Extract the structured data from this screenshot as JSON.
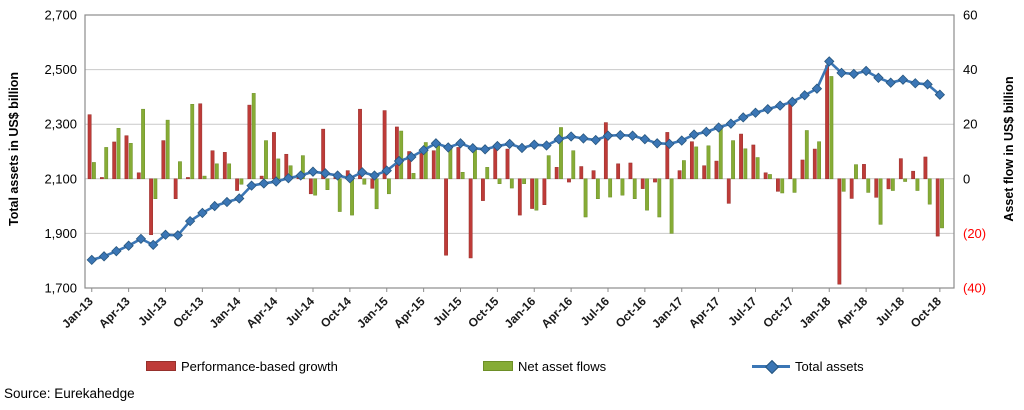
{
  "source": "Source: Eurekahedge",
  "left_axis": {
    "title": "Total assets in US$ billion",
    "min": 1700,
    "max": 2700,
    "ticks": [
      "2,700",
      "2,500",
      "2,300",
      "2,100",
      "1,900",
      "1,700"
    ]
  },
  "right_axis": {
    "title": "Asset flow in US$ billion",
    "min": -40,
    "max": 60,
    "ticks": [
      "60",
      "40",
      "20",
      "0",
      "(20)",
      "(40)"
    ],
    "negative_tick_color": "#ff0000"
  },
  "legend": {
    "performance_label": "Performance-based growth",
    "flows_label": "Net asset flows",
    "total_label": "Total assets"
  },
  "colors": {
    "performance": "#be3b38",
    "performance_border": "#96302c",
    "flows": "#86ac36",
    "flows_border": "#6d8f27",
    "total_line": "#3b76b5",
    "total_marker_border": "#27567e",
    "gridline": "#c9c9c9",
    "plot_border": "#8c8c8c",
    "tick_text": "#000000",
    "negative_text": "#ff0000"
  },
  "chart_data": {
    "type": "combo-bar-line",
    "x_tick_every": 3,
    "months": [
      "Jan-13",
      "Feb-13",
      "Mar-13",
      "Apr-13",
      "May-13",
      "Jun-13",
      "Jul-13",
      "Aug-13",
      "Sep-13",
      "Oct-13",
      "Nov-13",
      "Dec-13",
      "Jan-14",
      "Feb-14",
      "Mar-14",
      "Apr-14",
      "May-14",
      "Jun-14",
      "Jul-14",
      "Aug-14",
      "Sep-14",
      "Oct-14",
      "Nov-14",
      "Dec-14",
      "Jan-15",
      "Feb-15",
      "Mar-15",
      "Apr-15",
      "May-15",
      "Jun-15",
      "Jul-15",
      "Aug-15",
      "Sep-15",
      "Oct-15",
      "Nov-15",
      "Dec-15",
      "Jan-16",
      "Feb-16",
      "Mar-16",
      "Apr-16",
      "May-16",
      "Jun-16",
      "Jul-16",
      "Aug-16",
      "Sep-16",
      "Oct-16",
      "Nov-16",
      "Dec-16",
      "Jan-17",
      "Feb-17",
      "Mar-17",
      "Apr-17",
      "May-17",
      "Jun-17",
      "Jul-17",
      "Aug-17",
      "Sep-17",
      "Oct-17",
      "Nov-17",
      "Dec-17",
      "Jan-18",
      "Feb-18",
      "Mar-18",
      "Apr-18",
      "May-18",
      "Jun-18",
      "Jul-18",
      "Aug-18",
      "Sep-18",
      "Oct-18"
    ],
    "series": [
      {
        "name": "Performance-based growth",
        "type": "bar",
        "axis": "right",
        "values": [
          23.5,
          0.5,
          13.5,
          15.8,
          2.2,
          -20.5,
          14,
          -7.3,
          0.5,
          27.5,
          10.3,
          9.7,
          -4.3,
          27,
          1,
          17,
          9,
          0.5,
          -5.5,
          18.2,
          0.5,
          3,
          25.5,
          -3.5,
          25,
          19,
          10,
          9.7,
          10.3,
          -28,
          11.5,
          -29,
          -8,
          12.1,
          10.9,
          -13.3,
          -10.9,
          -9.5,
          4.2,
          -1.2,
          4.5,
          3,
          20.6,
          5.5,
          5.8,
          -3.6,
          -1.2,
          17,
          3,
          13.6,
          4.8,
          6.5,
          -9,
          16.4,
          12.4,
          2.2,
          -4.6,
          28,
          6.9,
          10.9,
          41.5,
          -38.6,
          -7.2,
          5.3,
          -6.8,
          -3.7,
          7.4,
          2.8,
          8,
          -21
        ]
      },
      {
        "name": "Net asset flows",
        "type": "bar",
        "axis": "right",
        "values": [
          6,
          11.5,
          18.5,
          13,
          25.5,
          -7.3,
          21.5,
          6.3,
          27.3,
          1,
          5.5,
          5.5,
          -2,
          31.3,
          14,
          7.3,
          4.8,
          8.5,
          -6,
          -4,
          -12,
          -13.3,
          -2,
          -11,
          -5.5,
          17.5,
          2,
          13.3,
          13.3,
          12,
          2.4,
          11.5,
          4.2,
          -1.8,
          -3.4,
          -1.8,
          -11.5,
          8.5,
          18.8,
          10.3,
          -14,
          -7.3,
          -6.7,
          -6,
          -7.3,
          -11.5,
          -14,
          -20,
          6.7,
          11.7,
          12.1,
          18.5,
          14,
          11,
          7.8,
          1.6,
          -5.2,
          -5,
          17.7,
          13.6,
          37.5,
          -4.6,
          5.2,
          -5,
          -16.7,
          -4.3,
          -1,
          -4.3,
          -9.3,
          -18
        ]
      },
      {
        "name": "Total assets",
        "type": "line",
        "axis": "left",
        "values": [
          1803,
          1816,
          1835,
          1855,
          1880,
          1858,
          1895,
          1893,
          1945,
          1975,
          2000,
          2015,
          2028,
          2075,
          2083,
          2090,
          2102,
          2112,
          2126,
          2120,
          2112,
          2102,
          2124,
          2112,
          2130,
          2165,
          2180,
          2205,
          2230,
          2215,
          2230,
          2212,
          2208,
          2220,
          2228,
          2213,
          2225,
          2222,
          2245,
          2255,
          2248,
          2242,
          2258,
          2260,
          2258,
          2245,
          2230,
          2228,
          2240,
          2262,
          2272,
          2288,
          2302,
          2325,
          2342,
          2355,
          2368,
          2382,
          2406,
          2430,
          2530,
          2488,
          2484,
          2495,
          2470,
          2452,
          2463,
          2450,
          2446,
          2408
        ]
      }
    ]
  }
}
